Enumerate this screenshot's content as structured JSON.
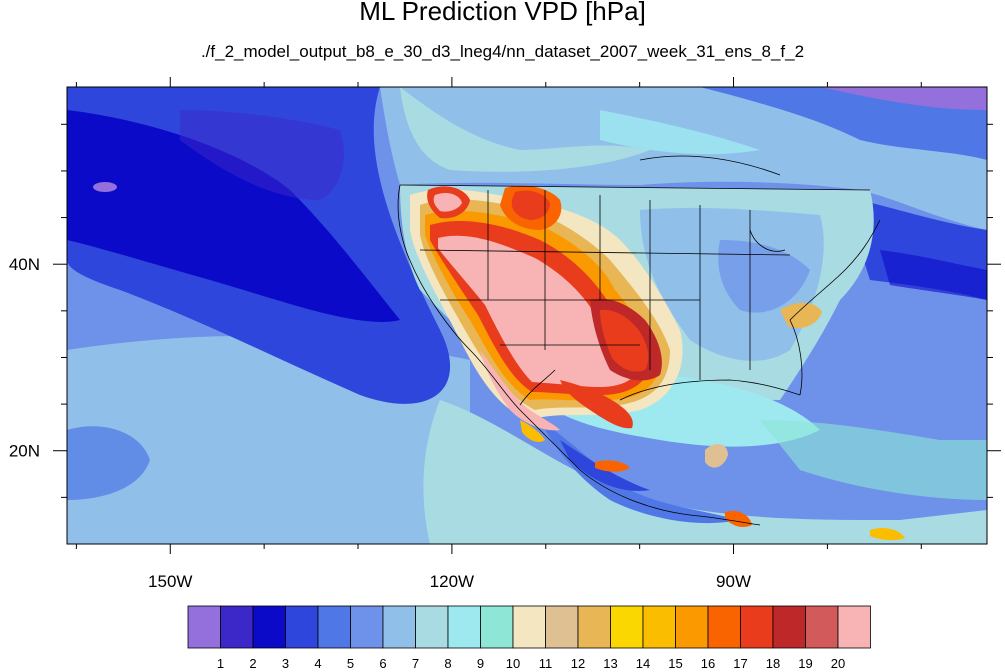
{
  "title": "ML Prediction VPD [hPa]",
  "subtitle": "./f_2_model_output_b8_e_30_d3_lneg4/nn_dataset_2007_week_31_ens_8_f_2",
  "map": {
    "lon_range": [
      -161,
      -63
    ],
    "lat_range": [
      10,
      59
    ],
    "x_ticks": [
      {
        "lon": -150,
        "label": "150W"
      },
      {
        "lon": -120,
        "label": "120W"
      },
      {
        "lon": -90,
        "label": "90W"
      }
    ],
    "y_ticks": [
      {
        "lat": 40,
        "label": "40N"
      },
      {
        "lat": 20,
        "label": "20N"
      }
    ]
  },
  "colorbar": {
    "colors": [
      "#9370db",
      "#3c28c8",
      "#0a0ac8",
      "#2e46dc",
      "#4f78e6",
      "#6e92ea",
      "#90c0ea",
      "#a9dbe3",
      "#9ee9f0",
      "#8ee6d6",
      "#f3e6c0",
      "#dfc093",
      "#e8b654",
      "#fad700",
      "#fbbd00",
      "#fa9a00",
      "#fa6400",
      "#e83c1c",
      "#be2828",
      "#d25a5a",
      "#f8b4b4"
    ],
    "labels": [
      "1",
      "2",
      "3",
      "4",
      "5",
      "6",
      "7",
      "8",
      "9",
      "10",
      "11",
      "12",
      "13",
      "14",
      "15",
      "16",
      "17",
      "18",
      "19",
      "20"
    ]
  }
}
